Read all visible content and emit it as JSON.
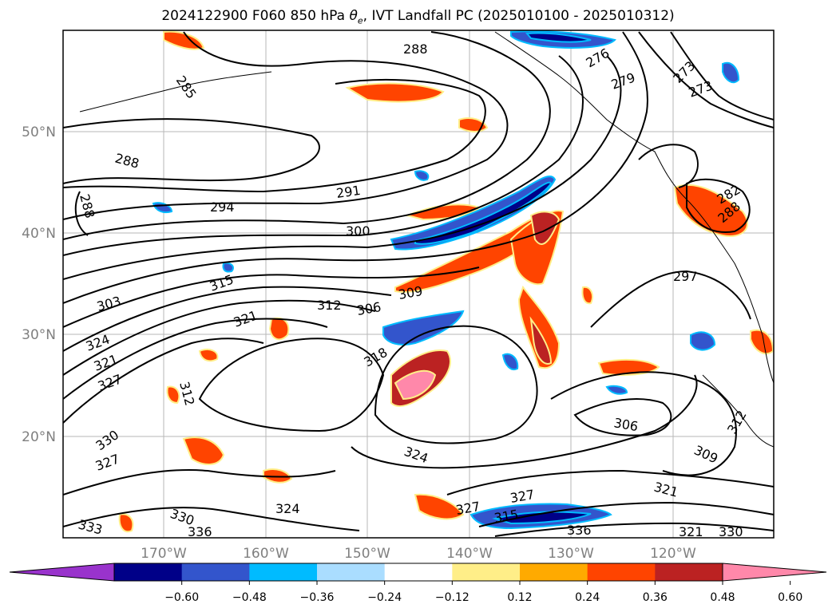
{
  "title": {
    "prefix": "2024122900 F060 850 hPa",
    "symbol": "θ",
    "subscript": "e",
    "suffix": ", IVT Landfall PC (2025010100 - 2025010312)"
  },
  "map": {
    "lat_labels": [
      "50°N",
      "40°N",
      "30°N",
      "20°N"
    ],
    "lon_labels": [
      "170°W",
      "160°W",
      "150°W",
      "140°W",
      "130°W",
      "120°W"
    ],
    "contour_labels": [
      "288",
      "288",
      "285",
      "288",
      "291",
      "294",
      "300",
      "303",
      "315",
      "312",
      "321",
      "306",
      "309",
      "324",
      "321",
      "327",
      "312",
      "318",
      "330",
      "327",
      "324",
      "324",
      "330",
      "333",
      "336",
      "327",
      "327",
      "315",
      "336",
      "306",
      "309",
      "312",
      "321",
      "321",
      "330",
      "297",
      "276",
      "273",
      "273",
      "279",
      "282",
      "288"
    ]
  },
  "colorbar": {
    "colors": [
      "#9933cc",
      "#000088",
      "#3355cc",
      "#00bbff",
      "#aaddff",
      "#ffffff",
      "#ffee88",
      "#ffaa00",
      "#ff4400",
      "#bb2222",
      "#ff88aa"
    ],
    "ticks": [
      "−0.60",
      "−0.48",
      "−0.36",
      "−0.24",
      "−0.12",
      "0.12",
      "0.24",
      "0.36",
      "0.48",
      "0.60"
    ]
  }
}
